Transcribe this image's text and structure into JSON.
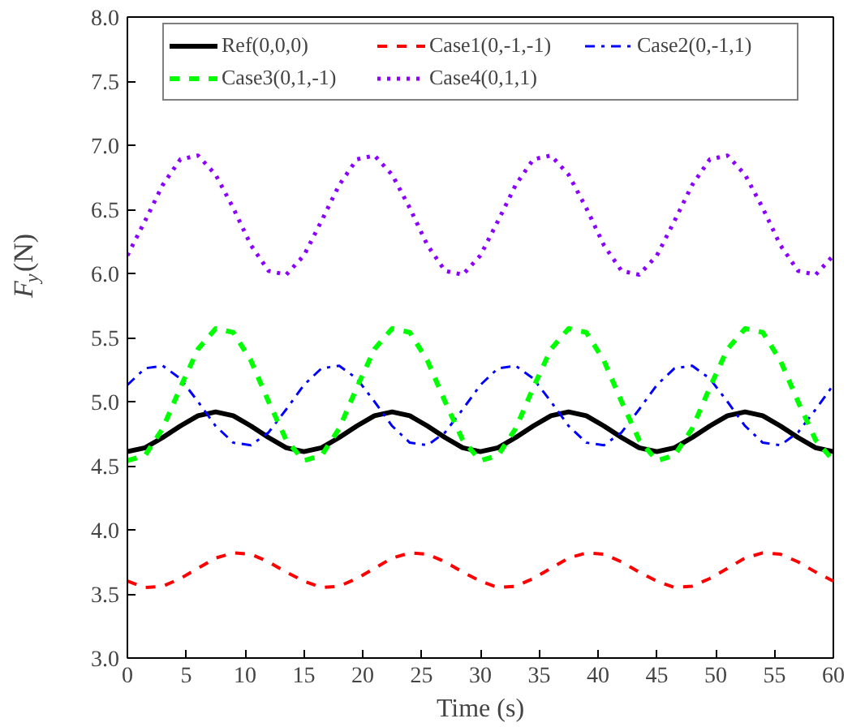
{
  "chart_data": {
    "type": "line",
    "xlabel": "Time (s)",
    "ylabel": "F$_{y}$(N)",
    "x": [
      0,
      1.5,
      3,
      4.5,
      6,
      7.5,
      9,
      10.5,
      12,
      13.5,
      15,
      16.5,
      18,
      19.5,
      21,
      22.5,
      24,
      25.5,
      27,
      28.5,
      30,
      31.5,
      33,
      34.5,
      36,
      37.5,
      39,
      40.5,
      42,
      43.5,
      45,
      46.5,
      48,
      49.5,
      51,
      52.5,
      54,
      55.5,
      57,
      58.5,
      60
    ],
    "series": [
      {
        "name": "Ref(0,0,0)",
        "color": "#000000",
        "line_style": "solid",
        "values": [
          4.61,
          4.64,
          4.72,
          4.81,
          4.89,
          4.92,
          4.89,
          4.81,
          4.72,
          4.64,
          4.61,
          4.64,
          4.72,
          4.81,
          4.89,
          4.92,
          4.89,
          4.81,
          4.72,
          4.64,
          4.61,
          4.64,
          4.72,
          4.81,
          4.89,
          4.92,
          4.89,
          4.81,
          4.72,
          4.64,
          4.61,
          4.64,
          4.72,
          4.81,
          4.89,
          4.92,
          4.89,
          4.81,
          4.72,
          4.64,
          4.61
        ]
      },
      {
        "name": "Case1(0,-1,-1)",
        "color": "#ff0000",
        "line_style": "dashed",
        "values": [
          3.6,
          3.55,
          3.56,
          3.62,
          3.7,
          3.78,
          3.82,
          3.81,
          3.75,
          3.67,
          3.6,
          3.55,
          3.56,
          3.62,
          3.7,
          3.78,
          3.82,
          3.81,
          3.75,
          3.67,
          3.6,
          3.55,
          3.56,
          3.62,
          3.7,
          3.78,
          3.82,
          3.81,
          3.75,
          3.67,
          3.6,
          3.55,
          3.56,
          3.62,
          3.7,
          3.78,
          3.82,
          3.81,
          3.75,
          3.67,
          3.6
        ]
      },
      {
        "name": "Case2(0,-1,1)",
        "color": "#0000ff",
        "line_style": "dashdot",
        "values": [
          5.13,
          5.26,
          5.28,
          5.18,
          5.0,
          4.81,
          4.68,
          4.66,
          4.76,
          4.94,
          5.13,
          5.26,
          5.28,
          5.18,
          5.0,
          4.81,
          4.68,
          4.66,
          4.76,
          4.94,
          5.13,
          5.26,
          5.28,
          5.18,
          5.0,
          4.81,
          4.68,
          4.66,
          4.76,
          4.94,
          5.13,
          5.26,
          5.28,
          5.18,
          5.0,
          4.81,
          4.68,
          4.66,
          4.76,
          4.94,
          5.13
        ]
      },
      {
        "name": "Case3(0,1,-1)",
        "color": "#00ff00",
        "line_style": "dashed",
        "values": [
          4.54,
          4.58,
          4.79,
          5.11,
          5.41,
          5.57,
          5.54,
          5.32,
          5.0,
          4.7,
          4.54,
          4.58,
          4.79,
          5.11,
          5.41,
          5.57,
          5.54,
          5.32,
          5.0,
          4.7,
          4.54,
          4.58,
          4.79,
          5.11,
          5.41,
          5.57,
          5.54,
          5.32,
          5.0,
          4.7,
          4.54,
          4.58,
          4.79,
          5.11,
          5.41,
          5.57,
          5.54,
          5.32,
          5.0,
          4.7,
          4.54
        ]
      },
      {
        "name": "Case4(0,1,1)",
        "color": "#8b00ff",
        "line_style": "dotted",
        "values": [
          6.14,
          6.41,
          6.69,
          6.89,
          6.92,
          6.77,
          6.51,
          6.22,
          6.02,
          5.99,
          6.14,
          6.41,
          6.69,
          6.89,
          6.92,
          6.77,
          6.51,
          6.22,
          6.02,
          5.99,
          6.14,
          6.41,
          6.69,
          6.89,
          6.92,
          6.77,
          6.51,
          6.22,
          6.02,
          5.99,
          6.14,
          6.41,
          6.69,
          6.89,
          6.92,
          6.77,
          6.51,
          6.22,
          6.02,
          5.99,
          6.14
        ]
      }
    ],
    "xlim": [
      0,
      60
    ],
    "xticks": [
      0,
      5,
      10,
      15,
      20,
      25,
      30,
      35,
      40,
      45,
      50,
      55,
      60
    ],
    "ylim": [
      3.0,
      8.0
    ],
    "yticks": [
      {
        "value": 3.0,
        "label": "3.0"
      },
      {
        "value": 3.5,
        "label": "3.5"
      },
      {
        "value": 4.0,
        "label": "4.0"
      },
      {
        "value": 4.5,
        "label": "4.5"
      },
      {
        "value": 5.0,
        "label": "5.0"
      },
      {
        "value": 5.5,
        "label": "5.5"
      },
      {
        "value": 6.0,
        "label": "6.0"
      },
      {
        "value": 6.5,
        "label": "6.5"
      },
      {
        "value": 7.0,
        "label": "7.0"
      },
      {
        "value": 7.5,
        "label": "7.5"
      },
      {
        "value": 8.0,
        "label": "8.0"
      }
    ],
    "legend": "top",
    "grid": false
  }
}
